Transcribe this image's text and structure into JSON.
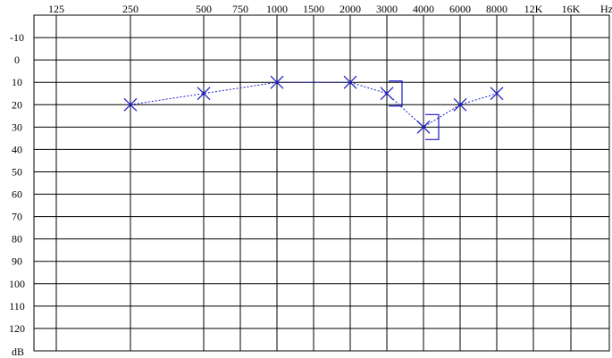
{
  "chart_data": {
    "type": "scatter",
    "title": "",
    "xlabel": "",
    "ylabel": "",
    "x_unit": "Hz",
    "y_unit": "dB",
    "x_ticks": [
      {
        "label": "125",
        "value": 125
      },
      {
        "label": "250",
        "value": 250
      },
      {
        "label": "500",
        "value": 500
      },
      {
        "label": "750",
        "value": 750
      },
      {
        "label": "1000",
        "value": 1000
      },
      {
        "label": "1500",
        "value": 1500
      },
      {
        "label": "2000",
        "value": 2000
      },
      {
        "label": "3000",
        "value": 3000
      },
      {
        "label": "4000",
        "value": 4000
      },
      {
        "label": "6000",
        "value": 6000
      },
      {
        "label": "8000",
        "value": 8000
      },
      {
        "label": "12K",
        "value": 12000
      },
      {
        "label": "16K",
        "value": 16000
      }
    ],
    "y_ticks": [
      "-10",
      "0",
      "10",
      "20",
      "30",
      "40",
      "50",
      "60",
      "70",
      "80",
      "90",
      "100",
      "110",
      "120"
    ],
    "ylim": [
      -20,
      130
    ],
    "y_inverted": true,
    "grid": true,
    "colors": {
      "data": "#1a1acc",
      "grid": "#000000"
    },
    "series": [
      {
        "marker": "x",
        "line": "dotted",
        "x": [
          250,
          500,
          1000,
          2000,
          3000,
          4000,
          6000,
          8000
        ],
        "y": [
          20,
          15,
          10,
          10,
          15,
          30,
          20,
          15
        ]
      },
      {
        "marker": "bracket",
        "line": "none",
        "x": [
          3000,
          4000
        ],
        "y": [
          15,
          30
        ]
      }
    ]
  }
}
